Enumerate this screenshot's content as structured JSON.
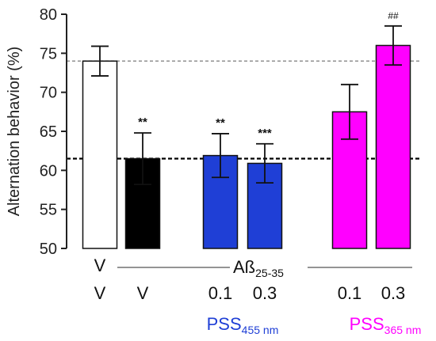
{
  "colors": {
    "axis": "#222222",
    "white_bar": "#ffffff",
    "black_bar": "#000000",
    "blue_bar": "#1f3fd6",
    "magenta_bar": "#ff00ff",
    "blue_text": "#1f3fd6",
    "magenta_text": "#ff00ff",
    "ref_line_gray": "#999999",
    "ref_line_black": "#000000"
  },
  "chart_data": {
    "type": "bar",
    "ylabel": "Alternation behavior (%)",
    "ylim": [
      50,
      80
    ],
    "yticks": [
      "50",
      "55",
      "60",
      "65",
      "70",
      "75",
      "80"
    ],
    "grid": false,
    "bars": [
      {
        "value": 74.0,
        "err": 1.9,
        "annotation": "",
        "color": "#ffffff"
      },
      {
        "value": 61.5,
        "err": 3.3,
        "annotation": "**",
        "color": "#000000"
      },
      {
        "value": 61.9,
        "err": 2.8,
        "annotation": "**",
        "color": "#1f3fd6"
      },
      {
        "value": 60.9,
        "err": 2.5,
        "annotation": "***",
        "color": "#1f3fd6"
      },
      {
        "value": 67.5,
        "err": 3.5,
        "annotation": "",
        "color": "#ff00ff"
      },
      {
        "value": 76.0,
        "err": 2.5,
        "annotation": "##",
        "color": "#ff00ff"
      }
    ],
    "reference_lines": [
      {
        "value": 74.0,
        "style": "dashed",
        "color": "#999999"
      },
      {
        "value": 61.5,
        "style": "dashed",
        "color": "#000000"
      }
    ],
    "row1_labels": [
      "V"
    ],
    "row2_labels": [
      "V",
      "V",
      "0.1",
      "0.3",
      "0.1",
      "0.3"
    ],
    "group_label": {
      "main": "Aß",
      "sub": "25-35"
    },
    "pss_labels": [
      {
        "main": "PSS",
        "sub": "455 nm",
        "color": "#1f3fd6"
      },
      {
        "main": "PSS",
        "sub": "365 nm",
        "color": "#ff00ff"
      }
    ]
  }
}
